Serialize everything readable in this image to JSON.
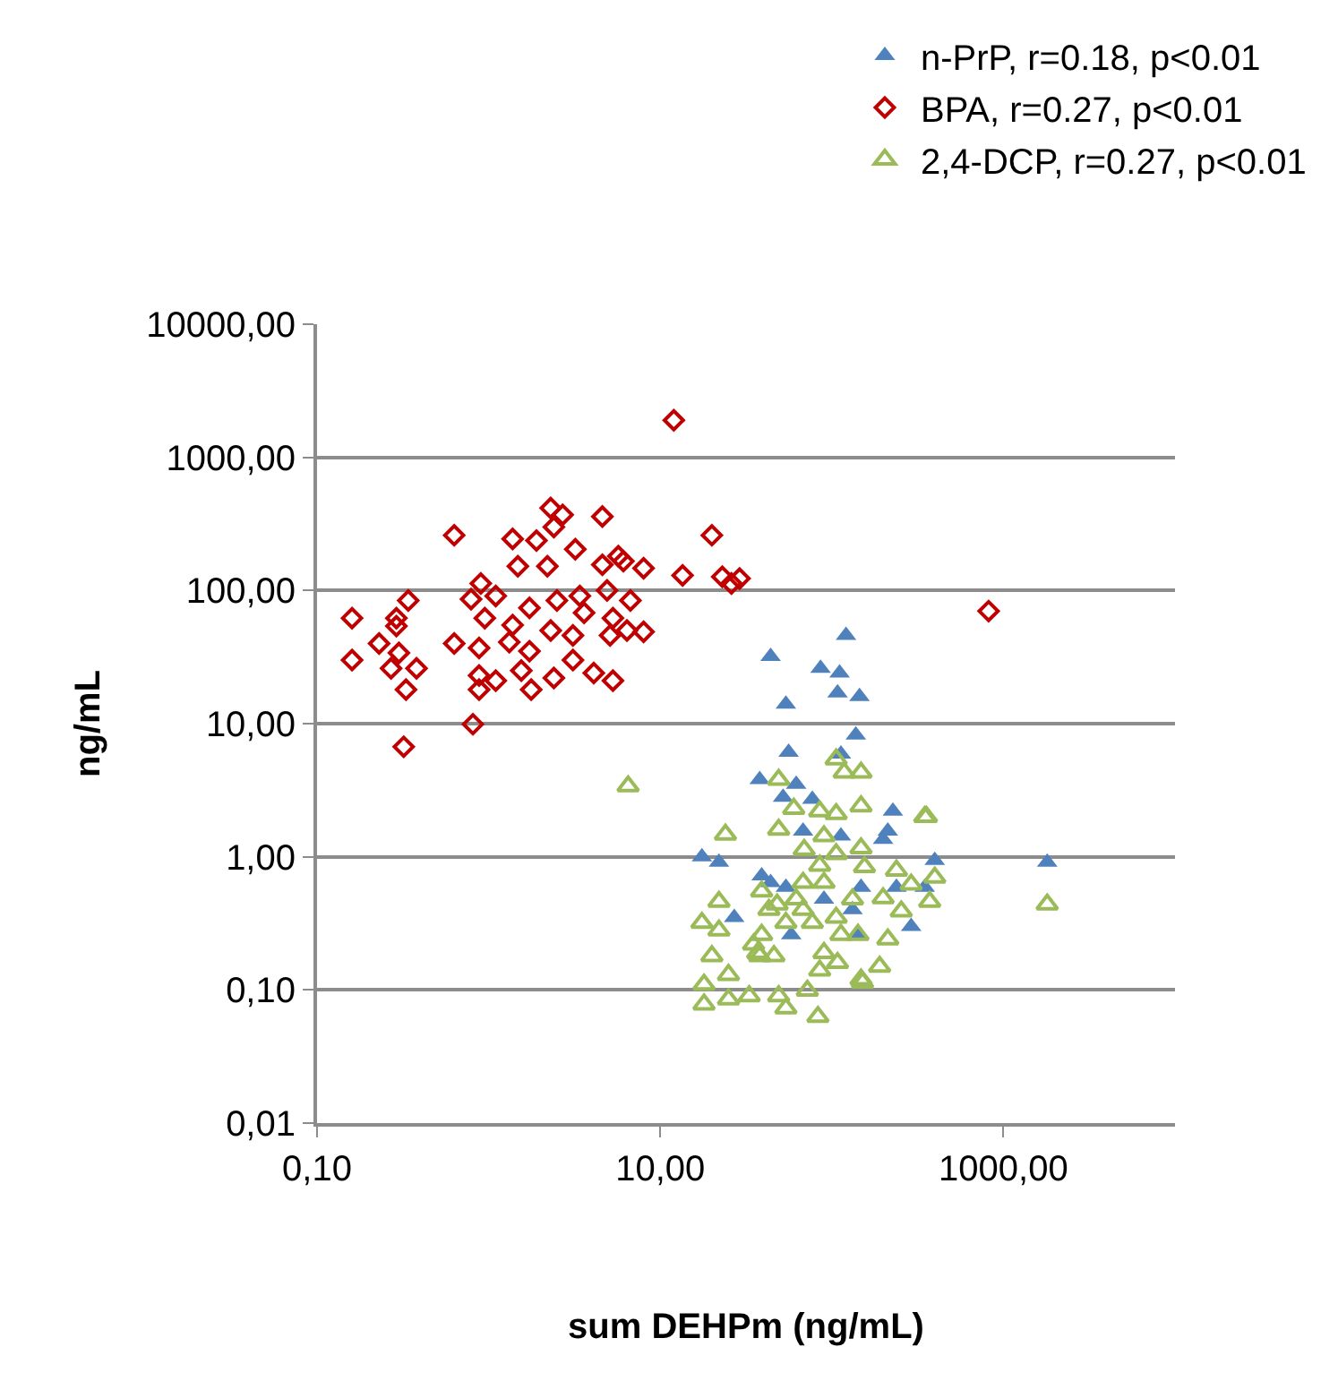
{
  "chart_data": {
    "type": "scatter",
    "xlabel": "sum DEHPm (ng/mL)",
    "ylabel": "ng/mL",
    "log": "xy",
    "grid": "y",
    "legend": "top right",
    "xlim": [
      0.1,
      10000
    ],
    "xticks": [
      {
        "value": 0.1,
        "label": "0,10"
      },
      {
        "value": 10,
        "label": "10,00"
      },
      {
        "value": 1000,
        "label": "1000,00"
      }
    ],
    "ylim": [
      0.01,
      10000
    ],
    "yticks": [
      {
        "value": 0.01,
        "label": "0,01"
      },
      {
        "value": 0.1,
        "label": "0,10"
      },
      {
        "value": 1,
        "label": "1,00"
      },
      {
        "value": 10,
        "label": "10,00"
      },
      {
        "value": 100,
        "label": "100,00"
      },
      {
        "value": 1000,
        "label": "1000,00"
      },
      {
        "value": 10000,
        "label": "10000,00"
      }
    ],
    "series": [
      {
        "name": "n-PrP, r=0.18, p<0.01",
        "color": "#4f81bd",
        "marker": "triangle",
        "x": [
          121,
          44,
          86,
          111,
          54,
          108,
          145,
          138,
          56,
          38,
          113,
          62,
          52,
          77,
          227,
          212,
          199,
          68,
          113,
          17.5,
          22,
          398,
          1800,
          39,
          44,
          27,
          148,
          142,
          290,
          238,
          348,
          54,
          90,
          132,
          58
        ],
        "values": [
          46,
          32,
          26,
          24,
          14,
          17,
          16,
          8.2,
          6.1,
          3.8,
          5.9,
          3.5,
          2.8,
          2.7,
          2.2,
          1.56,
          1.35,
          1.56,
          1.43,
          1.0,
          0.91,
          0.94,
          0.91,
          0.72,
          0.64,
          0.35,
          0.59,
          0.26,
          0.3,
          0.59,
          0.59,
          0.59,
          0.48,
          0.4,
          0.26
        ]
      },
      {
        "name": "BPA, r=0.27, p<0.01",
        "color": "#c00000",
        "marker": "diamond",
        "x": [
          12,
          820,
          0.63,
          20,
          23,
          26,
          29,
          13.5,
          0.16,
          0.16,
          0.34,
          0.29,
          0.23,
          0.3,
          0.27,
          0.38,
          0.33,
          0.32,
          0.81,
          0.29,
          2.3,
          2.7,
          4.6,
          1.38,
          1.9,
          2.4,
          3.2,
          1.48,
          2.2,
          8,
          6.1,
          4.6,
          0.9,
          0.79,
          1.1,
          1.73,
          2.5,
          3.4,
          4.9,
          6.7,
          3.6,
          0.95,
          1.38,
          2.3,
          5.3,
          6.4,
          8,
          0.63,
          0.88,
          1.32,
          1.73,
          3.1,
          5.1,
          0.88,
          1.1,
          1.55,
          1.77,
          2.4,
          3.1,
          4.1,
          5.3,
          0.88,
          5.7
        ],
        "values": [
          1900,
          70,
          260,
          260,
          127,
          113,
          123,
          130,
          62,
          30,
          84,
          62,
          40,
          34,
          26,
          26,
          18,
          6.7,
          9.9,
          54,
          416,
          370,
          359,
          244,
          237,
          300,
          204,
          152,
          152,
          147,
          166,
          156,
          113,
          86,
          91,
          74,
          84,
          91,
          100,
          84,
          68,
          62,
          55,
          50,
          62,
          50,
          49,
          40,
          37,
          41,
          35,
          46,
          46,
          23,
          21,
          25,
          18,
          22,
          30,
          24,
          21,
          18,
          181
        ]
      },
      {
        "name": "2,4-DCP, r=0.27, p<0.01",
        "color": "#9bbb59",
        "marker": "triangle",
        "x": [
          1800,
          6.5,
          106,
          148,
          118,
          49,
          148,
          348,
          24,
          49,
          60,
          85,
          106,
          90,
          148,
          155,
          238,
          290,
          398,
          372,
          199,
          254,
          22,
          17.5,
          22,
          20,
          18,
          18,
          25,
          25,
          33,
          39,
          43,
          35,
          38,
          49,
          54,
          72,
          83,
          85,
          108,
          151,
          190,
          90,
          46,
          68,
          54,
          77,
          106,
          132,
          90,
          68,
          62,
          48,
          39,
          37,
          113,
          142,
          85,
          106,
          69,
          356,
          212,
          148
        ],
        "values": [
          0.44,
          3.4,
          5.4,
          4.3,
          4.3,
          3.8,
          2.4,
          2.0,
          1.47,
          1.6,
          2.3,
          2.2,
          2.1,
          1.43,
          1.16,
          0.84,
          0.79,
          0.62,
          0.7,
          0.46,
          0.49,
          0.39,
          0.46,
          0.32,
          0.28,
          0.18,
          0.11,
          0.078,
          0.13,
          0.085,
          0.09,
          0.55,
          0.4,
          0.22,
          0.18,
          0.09,
          0.073,
          0.099,
          0.063,
          0.14,
          0.16,
          0.114,
          0.15,
          0.19,
          0.18,
          0.4,
          0.32,
          0.32,
          0.35,
          0.48,
          0.64,
          0.64,
          0.48,
          0.44,
          0.26,
          0.19,
          0.26,
          0.26,
          0.86,
          1.05,
          1.13,
          2.0,
          0.24,
          0.12
        ]
      }
    ]
  }
}
